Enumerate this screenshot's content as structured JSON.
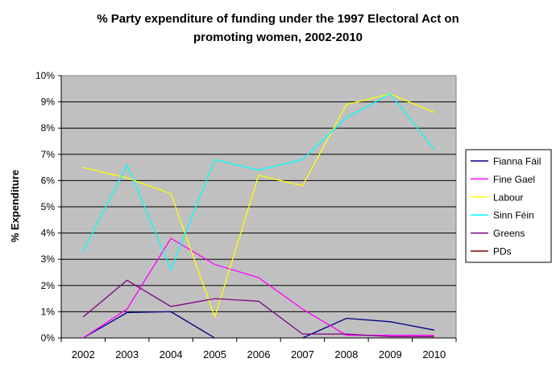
{
  "chart_data": {
    "type": "line",
    "title_line1": "% Party expenditure of funding under the 1997 Electoral Act on",
    "title_line2": "promoting women, 2002-2010",
    "xlabel": "",
    "ylabel": "% Expenditure",
    "categories": [
      "2002",
      "2003",
      "2004",
      "2005",
      "2006",
      "2007",
      "2008",
      "2009",
      "2010"
    ],
    "yticks": [
      "0%",
      "1%",
      "2%",
      "3%",
      "4%",
      "5%",
      "6%",
      "7%",
      "8%",
      "9%",
      "10%"
    ],
    "ylim": [
      0,
      10
    ],
    "grid": true,
    "legend_position": "right",
    "plot_background": "#c0c0c0",
    "series": [
      {
        "name": "Fianna Fáil",
        "color": "#000080",
        "values": [
          0.0,
          0.97,
          1.0,
          0.0,
          null,
          0.0,
          0.75,
          0.62,
          0.3
        ]
      },
      {
        "name": "Fine Gael",
        "color": "#ff00ff",
        "values": [
          0.0,
          1.1,
          3.8,
          2.8,
          2.3,
          1.1,
          0.1,
          0.1,
          0.1
        ]
      },
      {
        "name": "Labour",
        "color": "#ffff00",
        "values": [
          6.5,
          6.1,
          5.5,
          0.8,
          6.2,
          5.8,
          8.9,
          9.3,
          8.6
        ]
      },
      {
        "name": "Sinn Féin",
        "color": "#00ffff",
        "values": [
          3.3,
          6.6,
          2.6,
          6.8,
          6.4,
          6.8,
          8.4,
          9.3,
          7.2
        ]
      },
      {
        "name": "Greens",
        "color": "#800080",
        "values": [
          0.8,
          2.2,
          1.2,
          1.5,
          1.4,
          0.15,
          0.15,
          0.05,
          0.05
        ]
      },
      {
        "name": "PDs",
        "color": "#800000",
        "values": [
          null,
          null,
          null,
          null,
          null,
          null,
          null,
          null,
          null
        ]
      }
    ]
  }
}
